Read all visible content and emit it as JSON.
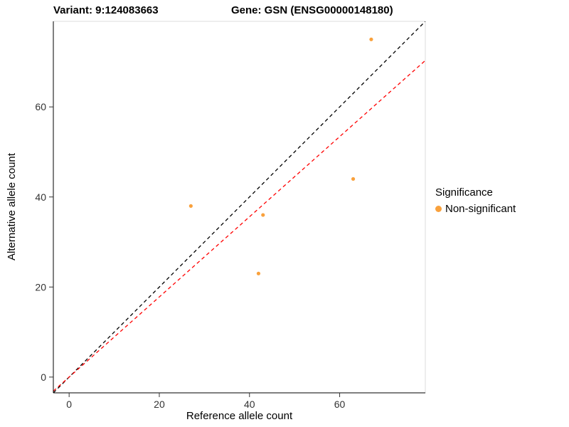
{
  "titles": {
    "left": "Variant: 9:124083663",
    "right": "Gene: GSN (ENSG00000148180)"
  },
  "axes": {
    "x_label": "Reference allele count",
    "y_label": "Alternative allele count"
  },
  "legend": {
    "title": "Significance",
    "items": [
      {
        "label": "Non-significant",
        "color": "#F9A13C"
      }
    ]
  },
  "chart_data": {
    "type": "scatter",
    "title_left": "Variant: 9:124083663",
    "title_right": "Gene: GSN (ENSG00000148180)",
    "xlabel": "Reference allele count",
    "ylabel": "Alternative allele count",
    "xlim": [
      -3.5,
      79
    ],
    "ylim": [
      -3.5,
      79
    ],
    "x_ticks": [
      0,
      20,
      40,
      60
    ],
    "y_ticks": [
      0,
      20,
      40,
      60
    ],
    "grid": false,
    "legend_position": "right",
    "point_radius": 2.6,
    "series": [
      {
        "name": "Non-significant",
        "color": "#F9A13C",
        "points": [
          [
            27,
            38
          ],
          [
            43,
            36
          ],
          [
            42,
            23
          ],
          [
            63,
            44
          ],
          [
            67,
            75
          ]
        ]
      }
    ],
    "lines": [
      {
        "name": "identity-line",
        "color": "#000000",
        "slope": 1,
        "intercept": 0,
        "dash": "5,4"
      },
      {
        "name": "fit-line",
        "color": "#FF0000",
        "slope": 0.89,
        "intercept": 0,
        "dash": "5,4"
      }
    ],
    "panel": {
      "border_color": "#DCDCDC",
      "axis_color": "#000000",
      "tick_color": "#333333"
    }
  }
}
